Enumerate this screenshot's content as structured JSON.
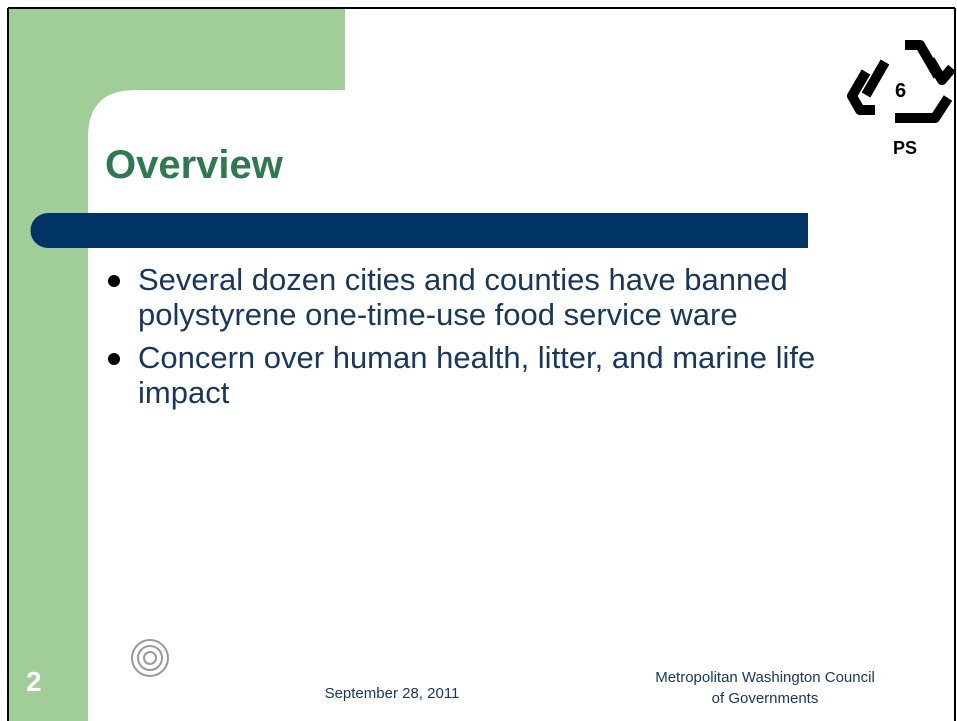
{
  "slide": {
    "title": "Overview",
    "bullets": [
      "Several dozen cities and counties have banned polystyrene one-time-use food service ware",
      "Concern over human health, litter, and marine life impact"
    ],
    "recycling_code": {
      "number": "6",
      "label": "PS"
    },
    "footer": {
      "slide_number": "2",
      "date": "September 28, 2011",
      "organization": [
        "Metropolitan Washington Council",
        "of Governments"
      ]
    }
  }
}
